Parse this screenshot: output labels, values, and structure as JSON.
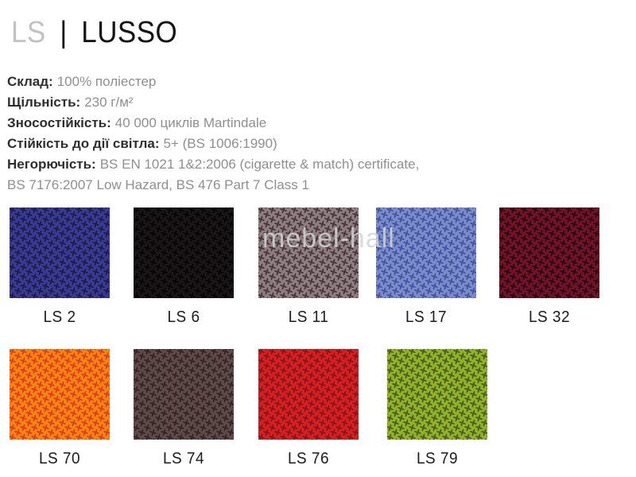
{
  "title": {
    "code": "LS",
    "separator": "|",
    "name": "LUSSO"
  },
  "specs": [
    {
      "label": "Склад:",
      "value": "100% поліестер"
    },
    {
      "label": "Щільність:",
      "value": "230 г/м²"
    },
    {
      "label": "Зносостійкість:",
      "value": "40 000 циклів Martindale"
    },
    {
      "label": "Стійкість до дії світла:",
      "value": "5+ (BS 1006:1990)"
    },
    {
      "label": "Негорючість:",
      "value": "BS EN 1021 1&2:2006 (cigarette & match) certificate,"
    },
    {
      "label": "",
      "value": "BS 7176:2007 Low Hazard, BS 476 Part 7 Class 1"
    }
  ],
  "watermark": {
    "text": "mebel-hall"
  },
  "colors": {
    "title_code": "#c2c2c2",
    "title_name": "#141414",
    "spec_label": "#2e2e2e",
    "spec_value": "#8f8f8f",
    "swatch_label": "#1c1c1c",
    "watermark": "#d4d4d4"
  },
  "swatch_rows": [
    [
      {
        "label": "LS 2",
        "base_color": "#3a3a92",
        "motif_color": "#1b1b4a"
      },
      {
        "label": "LS 6",
        "base_color": "#1a1516",
        "motif_color": "#070405"
      },
      {
        "label": "LS 11",
        "base_color": "#8d7e7f",
        "motif_color": "#48333c"
      },
      {
        "label": "LS 17",
        "base_color": "#7b8ccb",
        "motif_color": "#44519e"
      },
      {
        "label": "LS 32",
        "base_color": "#701427",
        "motif_color": "#2b0512"
      }
    ],
    [
      {
        "label": "LS 70",
        "base_color": "#f68511",
        "motif_color": "#da3c1b"
      },
      {
        "label": "LS 74",
        "base_color": "#5f4a4a",
        "motif_color": "#342222"
      },
      {
        "label": "LS 76",
        "base_color": "#d32124",
        "motif_color": "#8c1216"
      },
      {
        "label": "LS 79",
        "base_color": "#8eb32d",
        "motif_color": "#4f5a12"
      }
    ]
  ]
}
